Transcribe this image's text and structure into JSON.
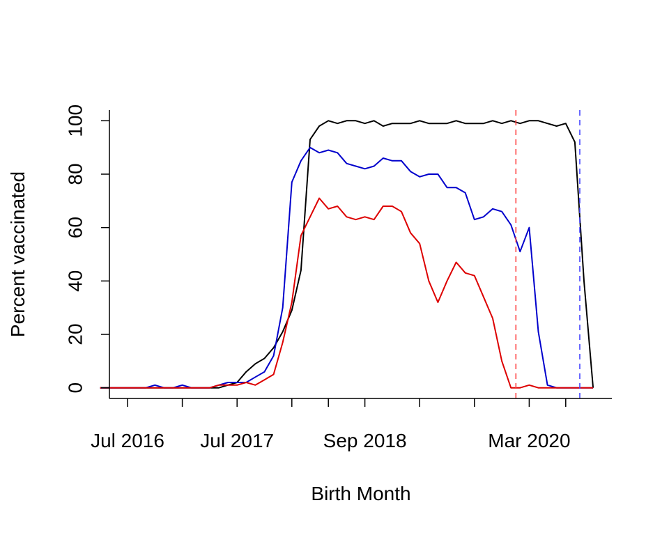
{
  "chart_data": {
    "type": "line",
    "title": "",
    "xlabel": "Birth Month",
    "ylabel": "Percent vaccinated",
    "x_start": "2016-04",
    "x_ticks": [
      {
        "month": "2016-07",
        "label": "Jul 2016"
      },
      {
        "month": "2017-01",
        "label": ""
      },
      {
        "month": "2017-07",
        "label": "Jul 2017"
      },
      {
        "month": "2018-01",
        "label": ""
      },
      {
        "month": "2018-05",
        "label": ""
      },
      {
        "month": "2018-09",
        "label": "Sep 2018"
      },
      {
        "month": "2019-03",
        "label": ""
      },
      {
        "month": "2019-09",
        "label": ""
      },
      {
        "month": "2020-03",
        "label": "Mar 2020"
      },
      {
        "month": "2020-07",
        "label": ""
      }
    ],
    "y_ticks": [
      0,
      20,
      40,
      60,
      80,
      100
    ],
    "ylim": [
      -4,
      104
    ],
    "grid": false,
    "legend": "none",
    "series": [
      {
        "color": "#000000",
        "values": [
          0,
          0,
          0,
          0,
          0,
          0,
          0,
          0,
          0,
          0,
          0,
          0,
          0,
          0,
          1,
          2,
          6,
          9,
          11,
          15,
          21,
          29,
          44,
          93,
          98,
          100,
          99,
          100,
          100,
          99,
          100,
          98,
          99,
          99,
          99,
          100,
          99,
          99,
          99,
          100,
          99,
          99,
          99,
          100,
          99,
          100,
          99,
          100,
          100,
          99,
          98,
          99,
          92,
          40,
          0
        ]
      },
      {
        "color": "#0000cc",
        "values": [
          0,
          0,
          0,
          0,
          0,
          0,
          1,
          0,
          0,
          1,
          0,
          0,
          0,
          1,
          2,
          2,
          2,
          4,
          6,
          12,
          30,
          77,
          85,
          90,
          88,
          89,
          88,
          84,
          83,
          82,
          83,
          86,
          85,
          85,
          81,
          79,
          80,
          80,
          75,
          75,
          73,
          63,
          64,
          67,
          66,
          61,
          51,
          60,
          21,
          1,
          0,
          0,
          0,
          0,
          0
        ]
      },
      {
        "color": "#dd0000",
        "values": [
          0,
          0,
          0,
          0,
          0,
          0,
          0,
          0,
          0,
          0,
          0,
          0,
          0,
          1,
          1,
          1,
          2,
          1,
          3,
          5,
          17,
          32,
          57,
          64,
          71,
          67,
          68,
          64,
          63,
          64,
          63,
          68,
          68,
          66,
          58,
          54,
          40,
          32,
          40,
          47,
          43,
          42,
          34,
          26,
          10,
          0,
          0,
          1,
          0,
          0,
          0,
          0,
          0,
          0,
          0
        ]
      }
    ],
    "series_x_offset_months": 3,
    "reference_lines": [
      {
        "month": "2020-02",
        "color": "#ff4444"
      },
      {
        "month": "2020-09",
        "color": "#4444ff"
      }
    ]
  }
}
